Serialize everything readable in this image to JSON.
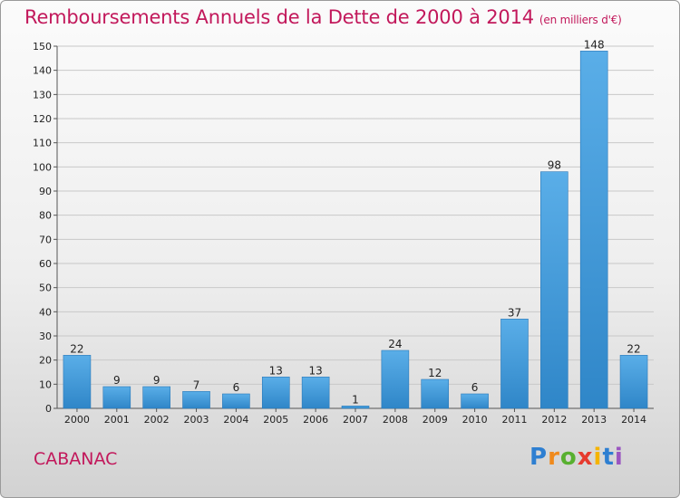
{
  "header": {
    "title": "Remboursements Annuels de la Dette de 2000 à 2014",
    "unit": "(en milliers d'€)"
  },
  "footer": {
    "commune": "CABANAC",
    "logo_letters": [
      "P",
      "r",
      "o",
      "x",
      "i",
      "t",
      "i"
    ],
    "logo_colors": [
      "#2e7fd1",
      "#f08a1c",
      "#58b030",
      "#e63a2e",
      "#f5b400",
      "#2e7fd1",
      "#9a55c0"
    ]
  },
  "colors": {
    "title": "#c2185b",
    "bar_top": "#5aaee8",
    "bar_bottom": "#2f86c8",
    "grid": "#c8c8c8"
  },
  "chart_data": {
    "type": "bar",
    "title": "Remboursements Annuels de la Dette de 2000 à 2014",
    "unit": "(en milliers d'€)",
    "xlabel": "",
    "ylabel": "",
    "categories": [
      "2000",
      "2001",
      "2002",
      "2003",
      "2004",
      "2005",
      "2006",
      "2007",
      "2008",
      "2009",
      "2010",
      "2011",
      "2012",
      "2013",
      "2014"
    ],
    "values": [
      22,
      9,
      9,
      7,
      6,
      13,
      13,
      1,
      24,
      12,
      6,
      37,
      98,
      148,
      22
    ],
    "ylim": [
      0,
      150
    ],
    "yticks": [
      0,
      10,
      20,
      30,
      40,
      50,
      60,
      70,
      80,
      90,
      100,
      110,
      120,
      130,
      140,
      150
    ],
    "grid": true,
    "legend": "none"
  }
}
